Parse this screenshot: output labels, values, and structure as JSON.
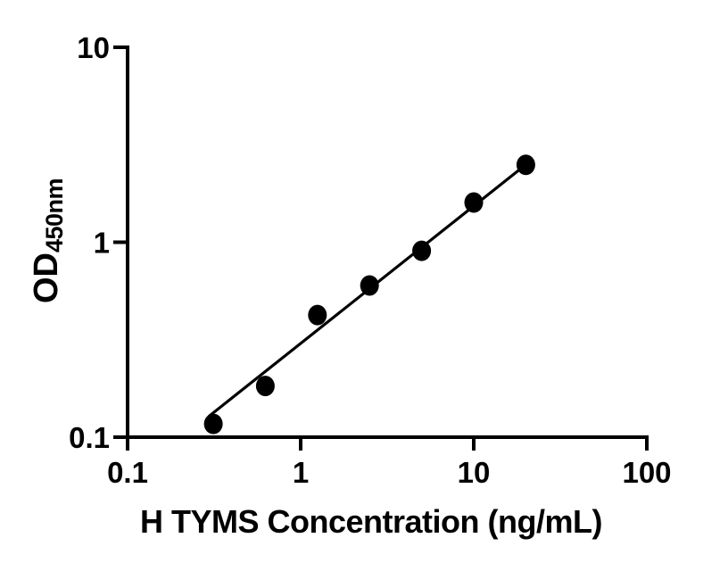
{
  "figure": {
    "background": "#ffffff",
    "ink_color": "#000000"
  },
  "chart_data": {
    "type": "scatter",
    "title": "",
    "xlabel": "H TYMS Concentration (ng/mL)",
    "ylabel_main": "OD",
    "ylabel_sub": "450nm",
    "x_scale": "log10",
    "y_scale": "log10",
    "xlim": [
      0.1,
      100
    ],
    "ylim": [
      0.1,
      10
    ],
    "grid": false,
    "legend": null,
    "x_ticks": [
      {
        "value": 0.1,
        "label": "0.1"
      },
      {
        "value": 1,
        "label": "1"
      },
      {
        "value": 10,
        "label": "10"
      },
      {
        "value": 100,
        "label": "100"
      }
    ],
    "y_ticks": [
      {
        "value": 0.1,
        "label": "0.1"
      },
      {
        "value": 1,
        "label": "1"
      },
      {
        "value": 10,
        "label": "10"
      }
    ],
    "series": [
      {
        "marker": "filled-circle",
        "color": "#000000",
        "points": [
          {
            "x": 0.313,
            "y": 0.117
          },
          {
            "x": 0.625,
            "y": 0.183
          },
          {
            "x": 1.25,
            "y": 0.423
          },
          {
            "x": 2.5,
            "y": 0.6
          },
          {
            "x": 5,
            "y": 0.904
          },
          {
            "x": 10,
            "y": 1.598
          },
          {
            "x": 20,
            "y": 2.495
          }
        ]
      }
    ],
    "fit_line": {
      "x1": 0.295,
      "y1": 0.128,
      "x2": 20,
      "y2": 2.5,
      "color": "#000000"
    }
  }
}
